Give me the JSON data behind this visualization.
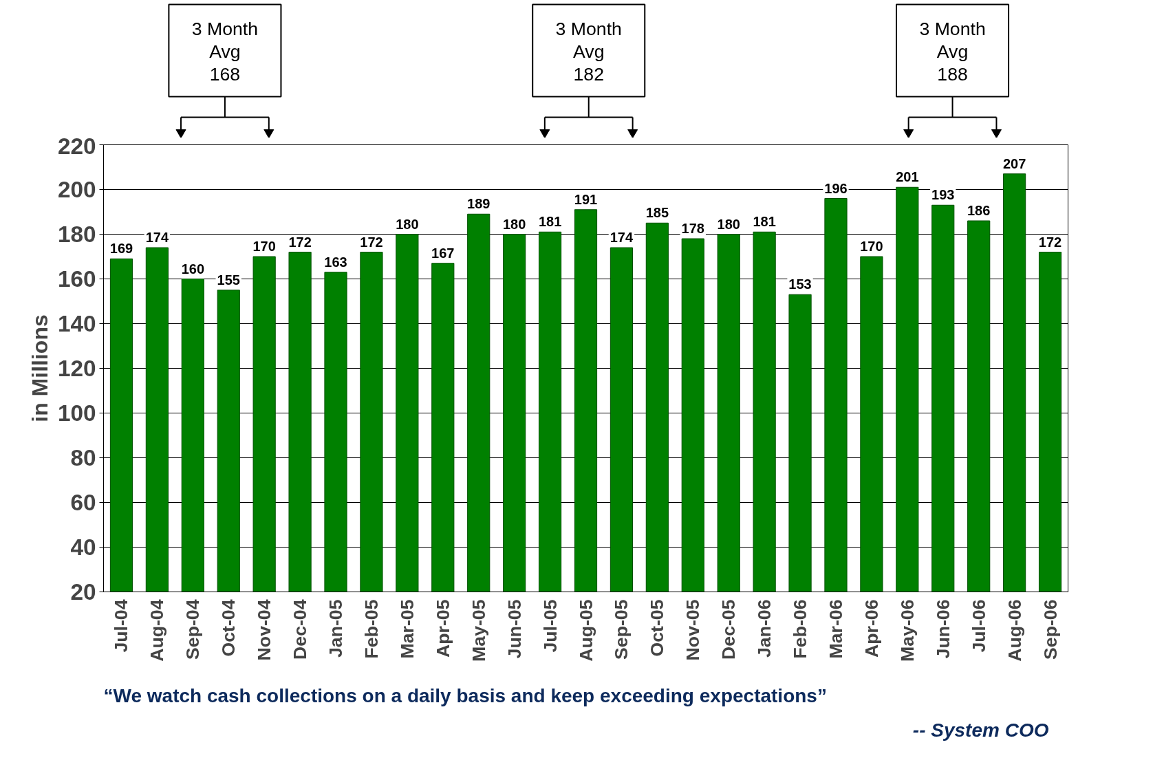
{
  "chart_data": {
    "type": "bar",
    "ylabel": "in Millions",
    "categories": [
      "Jul-04",
      "Aug-04",
      "Sep-04",
      "Oct-04",
      "Nov-04",
      "Dec-04",
      "Jan-05",
      "Feb-05",
      "Mar-05",
      "Apr-05",
      "May-05",
      "Jun-05",
      "Jul-05",
      "Aug-05",
      "Sep-05",
      "Oct-05",
      "Nov-05",
      "Dec-05",
      "Jan-06",
      "Feb-06",
      "Mar-06",
      "Apr-06",
      "May-06",
      "Jun-06",
      "Jul-06",
      "Aug-06",
      "Sep-06"
    ],
    "values": [
      169,
      174,
      160,
      155,
      170,
      172,
      163,
      172,
      180,
      167,
      189,
      180,
      181,
      191,
      174,
      185,
      178,
      180,
      181,
      153,
      196,
      170,
      201,
      193,
      186,
      207,
      172
    ],
    "color": "#008000",
    "ylim": [
      20,
      220
    ],
    "yticks": [
      20,
      40,
      60,
      80,
      100,
      120,
      140,
      160,
      180,
      200,
      220
    ],
    "grid": "y",
    "data_labels": true,
    "annotations": [
      "3 Month\nAvg\n168",
      "3 Month\nAvg\n182",
      "3 Month\nAvg\n188",
      "“We watch cash collections on a daily basis and keep exceeding expectations”",
      "-- System COO"
    ]
  }
}
